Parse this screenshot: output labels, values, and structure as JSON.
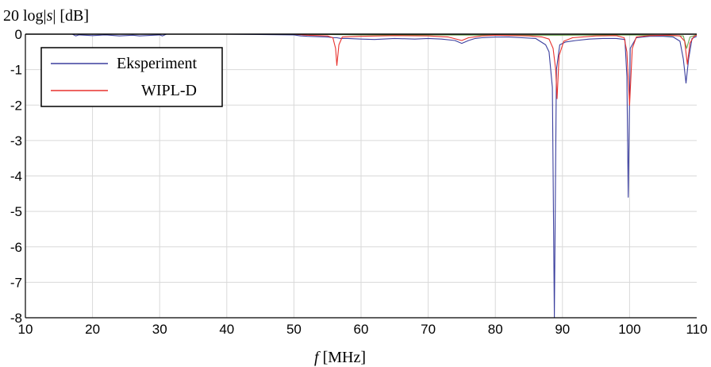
{
  "chart_data": {
    "type": "line",
    "title": "",
    "ylabel": "20 log|s| [dB]",
    "ylabel_parts": [
      "20 log|",
      "s",
      "| [dB]"
    ],
    "xlabel": "f [MHz]",
    "xlabel_parts": [
      "f",
      " [MHz]"
    ],
    "xlim": [
      10,
      110
    ],
    "ylim": [
      -8,
      0
    ],
    "x_ticks": [
      10,
      20,
      30,
      40,
      50,
      60,
      70,
      80,
      90,
      100,
      110
    ],
    "y_ticks": [
      0,
      -1,
      -2,
      -3,
      -4,
      -5,
      -6,
      -7,
      -8
    ],
    "x_tick_labels": [
      "10",
      "20",
      "30",
      "40",
      "50",
      "60",
      "70",
      "80",
      "90",
      "100",
      "110"
    ],
    "y_tick_labels": [
      "0",
      "-1",
      "-2",
      "-3",
      "-4",
      "-5",
      "-6",
      "-7",
      "-8"
    ],
    "grid": true,
    "legend_position": "top-left",
    "series": [
      {
        "name": "Eksperiment",
        "color": "#3b3f9e",
        "x": [
          10,
          17,
          17.5,
          18,
          20,
          22,
          24,
          26,
          27,
          30,
          30.4,
          31,
          40,
          50,
          51,
          52,
          55,
          56,
          56.4,
          57,
          58,
          60,
          62,
          65,
          68,
          70,
          72,
          74,
          75,
          76,
          77,
          78,
          80,
          82,
          84,
          86,
          87.5,
          88,
          88.5,
          88.8,
          89.1,
          89.6,
          90.5,
          92,
          94,
          96,
          98,
          99.3,
          99.6,
          99.8,
          100.1,
          101,
          103,
          105,
          106.5,
          107.5,
          108,
          108.4,
          108.8,
          109.3,
          110
        ],
        "y": [
          0,
          0,
          -0.05,
          -0.02,
          -0.04,
          -0.02,
          -0.05,
          -0.03,
          -0.05,
          -0.02,
          -0.05,
          0,
          0,
          -0.02,
          -0.05,
          -0.06,
          -0.08,
          -0.1,
          -0.1,
          -0.12,
          -0.12,
          -0.14,
          -0.15,
          -0.12,
          -0.14,
          -0.12,
          -0.14,
          -0.18,
          -0.26,
          -0.18,
          -0.12,
          -0.1,
          -0.08,
          -0.08,
          -0.1,
          -0.12,
          -0.3,
          -0.5,
          -1.5,
          -8,
          -1.0,
          -0.3,
          -0.22,
          -0.18,
          -0.14,
          -0.12,
          -0.12,
          -0.15,
          -1.2,
          -4.6,
          -0.4,
          -0.1,
          -0.06,
          -0.06,
          -0.08,
          -0.2,
          -0.7,
          -1.38,
          -0.7,
          -0.12,
          -0.06
        ]
      },
      {
        "name": "WIPL-D",
        "color": "#e8322d",
        "x": [
          10,
          50,
          52,
          55,
          55.8,
          56.2,
          56.4,
          56.7,
          57.2,
          60,
          65,
          70,
          73,
          75,
          76,
          78,
          80,
          83,
          85,
          87,
          88,
          88.6,
          89,
          89.2,
          89.5,
          90.2,
          91.5,
          95,
          98,
          99.2,
          99.6,
          100,
          100.4,
          101,
          103,
          106,
          107.5,
          108.2,
          108.6,
          109,
          109.6,
          110
        ],
        "y": [
          0,
          0,
          -0.03,
          -0.05,
          -0.1,
          -0.4,
          -0.88,
          -0.3,
          -0.08,
          -0.06,
          -0.04,
          -0.05,
          -0.08,
          -0.18,
          -0.1,
          -0.05,
          -0.03,
          -0.04,
          -0.05,
          -0.08,
          -0.14,
          -0.4,
          -1.0,
          -1.82,
          -0.6,
          -0.2,
          -0.1,
          -0.05,
          -0.04,
          -0.1,
          -0.5,
          -2.0,
          -0.4,
          -0.08,
          -0.04,
          -0.03,
          -0.05,
          -0.2,
          -0.85,
          -0.25,
          -0.06,
          -0.03
        ]
      },
      {
        "name": "",
        "color": "#6aa84f",
        "x": [
          10,
          50,
          60,
          70,
          80,
          90,
          100,
          108,
          108.5,
          109,
          110
        ],
        "y": [
          0,
          0,
          -0.02,
          -0.02,
          -0.03,
          -0.03,
          -0.02,
          -0.05,
          -0.4,
          -0.08,
          -0.02
        ]
      }
    ]
  }
}
